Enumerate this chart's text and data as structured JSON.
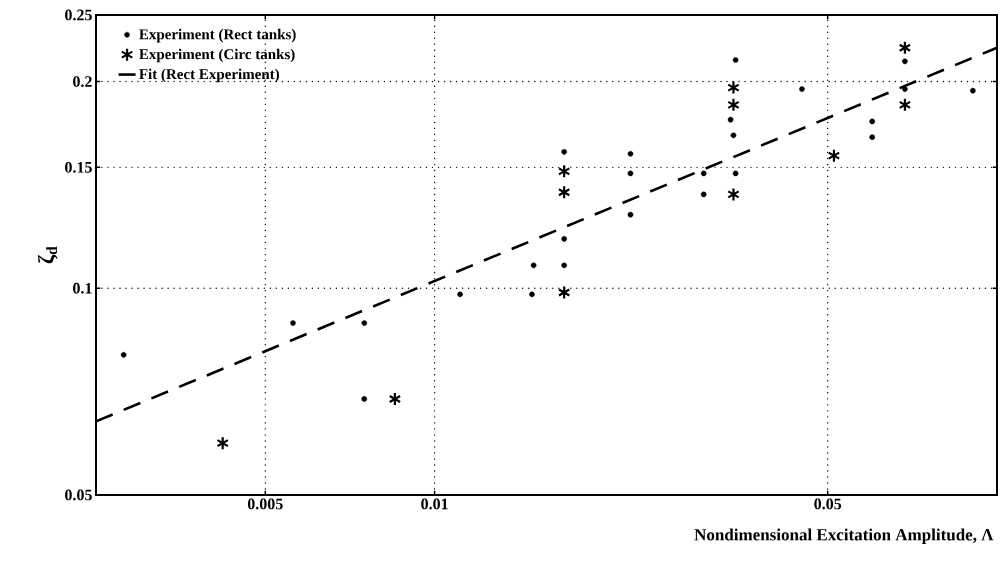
{
  "chart_data": {
    "type": "scatter",
    "xlabel": "Nondimensional Excitation Amplitude, Λ",
    "ylabel": "ζ$_{d}$",
    "log": "xy",
    "grid": true,
    "legend": "top left",
    "xlim": [
      0.0025,
      0.1
    ],
    "ylim": [
      0.05,
      0.25
    ],
    "xticks": [
      0.005,
      0.01,
      0.05
    ],
    "yticks": [
      0.05,
      0.1,
      0.15,
      0.2,
      0.25
    ],
    "series": [
      {
        "name": "Experiment (Rect tanks)",
        "color": "#000000",
        "marker": "circle",
        "x": [
          0.0028,
          0.0056,
          0.0075,
          0.0075,
          0.0111,
          0.0149,
          0.015,
          0.017,
          0.017,
          0.017,
          0.0223,
          0.0223,
          0.0223,
          0.0301,
          0.0301,
          0.0336,
          0.034,
          0.0343,
          0.0343,
          0.045,
          0.06,
          0.06,
          0.0686,
          0.0686,
          0.0906
        ],
        "values": [
          0.08,
          0.089,
          0.089,
          0.069,
          0.098,
          0.098,
          0.108,
          0.108,
          0.118,
          0.158,
          0.157,
          0.147,
          0.128,
          0.147,
          0.137,
          0.176,
          0.167,
          0.147,
          0.215,
          0.195,
          0.175,
          0.166,
          0.214,
          0.195,
          0.194
        ]
      },
      {
        "name": "Experiment (Circ tanks)",
        "color": "#000000",
        "marker": "cross",
        "x": [
          0.0042,
          0.0085,
          0.017,
          0.017,
          0.017,
          0.034,
          0.034,
          0.034,
          0.0513,
          0.0686,
          0.0686
        ],
        "values": [
          0.0595,
          0.069,
          0.0986,
          0.148,
          0.138,
          0.196,
          0.185,
          0.137,
          0.156,
          0.224,
          0.185
        ]
      },
      {
        "name": "Fit (Rect Experiment)",
        "type": "line",
        "color": "#000000",
        "marker": "none",
        "line_style": "dashed",
        "x": [
          0.0025,
          0.1
        ],
        "values": [
          0.064,
          0.224
        ]
      }
    ]
  }
}
